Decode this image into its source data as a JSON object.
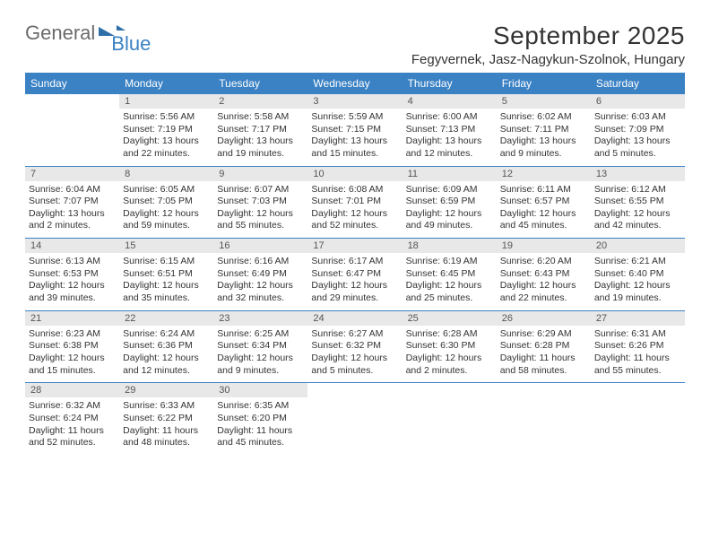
{
  "logo": {
    "text1": "General",
    "text2": "Blue"
  },
  "title": "September 2025",
  "location": "Fegyvernek, Jasz-Nagykun-Szolnok, Hungary",
  "colors": {
    "header_bg": "#3b82c4",
    "daynum_bg": "#e8e8e8",
    "text": "#333333",
    "logo_gray": "#6b6b6b",
    "logo_blue": "#3b82c4"
  },
  "dow": [
    "Sunday",
    "Monday",
    "Tuesday",
    "Wednesday",
    "Thursday",
    "Friday",
    "Saturday"
  ],
  "weeks": [
    [
      {
        "n": "",
        "sr": "",
        "ss": "",
        "dl": ""
      },
      {
        "n": "1",
        "sr": "Sunrise: 5:56 AM",
        "ss": "Sunset: 7:19 PM",
        "dl": "Daylight: 13 hours and 22 minutes."
      },
      {
        "n": "2",
        "sr": "Sunrise: 5:58 AM",
        "ss": "Sunset: 7:17 PM",
        "dl": "Daylight: 13 hours and 19 minutes."
      },
      {
        "n": "3",
        "sr": "Sunrise: 5:59 AM",
        "ss": "Sunset: 7:15 PM",
        "dl": "Daylight: 13 hours and 15 minutes."
      },
      {
        "n": "4",
        "sr": "Sunrise: 6:00 AM",
        "ss": "Sunset: 7:13 PM",
        "dl": "Daylight: 13 hours and 12 minutes."
      },
      {
        "n": "5",
        "sr": "Sunrise: 6:02 AM",
        "ss": "Sunset: 7:11 PM",
        "dl": "Daylight: 13 hours and 9 minutes."
      },
      {
        "n": "6",
        "sr": "Sunrise: 6:03 AM",
        "ss": "Sunset: 7:09 PM",
        "dl": "Daylight: 13 hours and 5 minutes."
      }
    ],
    [
      {
        "n": "7",
        "sr": "Sunrise: 6:04 AM",
        "ss": "Sunset: 7:07 PM",
        "dl": "Daylight: 13 hours and 2 minutes."
      },
      {
        "n": "8",
        "sr": "Sunrise: 6:05 AM",
        "ss": "Sunset: 7:05 PM",
        "dl": "Daylight: 12 hours and 59 minutes."
      },
      {
        "n": "9",
        "sr": "Sunrise: 6:07 AM",
        "ss": "Sunset: 7:03 PM",
        "dl": "Daylight: 12 hours and 55 minutes."
      },
      {
        "n": "10",
        "sr": "Sunrise: 6:08 AM",
        "ss": "Sunset: 7:01 PM",
        "dl": "Daylight: 12 hours and 52 minutes."
      },
      {
        "n": "11",
        "sr": "Sunrise: 6:09 AM",
        "ss": "Sunset: 6:59 PM",
        "dl": "Daylight: 12 hours and 49 minutes."
      },
      {
        "n": "12",
        "sr": "Sunrise: 6:11 AM",
        "ss": "Sunset: 6:57 PM",
        "dl": "Daylight: 12 hours and 45 minutes."
      },
      {
        "n": "13",
        "sr": "Sunrise: 6:12 AM",
        "ss": "Sunset: 6:55 PM",
        "dl": "Daylight: 12 hours and 42 minutes."
      }
    ],
    [
      {
        "n": "14",
        "sr": "Sunrise: 6:13 AM",
        "ss": "Sunset: 6:53 PM",
        "dl": "Daylight: 12 hours and 39 minutes."
      },
      {
        "n": "15",
        "sr": "Sunrise: 6:15 AM",
        "ss": "Sunset: 6:51 PM",
        "dl": "Daylight: 12 hours and 35 minutes."
      },
      {
        "n": "16",
        "sr": "Sunrise: 6:16 AM",
        "ss": "Sunset: 6:49 PM",
        "dl": "Daylight: 12 hours and 32 minutes."
      },
      {
        "n": "17",
        "sr": "Sunrise: 6:17 AM",
        "ss": "Sunset: 6:47 PM",
        "dl": "Daylight: 12 hours and 29 minutes."
      },
      {
        "n": "18",
        "sr": "Sunrise: 6:19 AM",
        "ss": "Sunset: 6:45 PM",
        "dl": "Daylight: 12 hours and 25 minutes."
      },
      {
        "n": "19",
        "sr": "Sunrise: 6:20 AM",
        "ss": "Sunset: 6:43 PM",
        "dl": "Daylight: 12 hours and 22 minutes."
      },
      {
        "n": "20",
        "sr": "Sunrise: 6:21 AM",
        "ss": "Sunset: 6:40 PM",
        "dl": "Daylight: 12 hours and 19 minutes."
      }
    ],
    [
      {
        "n": "21",
        "sr": "Sunrise: 6:23 AM",
        "ss": "Sunset: 6:38 PM",
        "dl": "Daylight: 12 hours and 15 minutes."
      },
      {
        "n": "22",
        "sr": "Sunrise: 6:24 AM",
        "ss": "Sunset: 6:36 PM",
        "dl": "Daylight: 12 hours and 12 minutes."
      },
      {
        "n": "23",
        "sr": "Sunrise: 6:25 AM",
        "ss": "Sunset: 6:34 PM",
        "dl": "Daylight: 12 hours and 9 minutes."
      },
      {
        "n": "24",
        "sr": "Sunrise: 6:27 AM",
        "ss": "Sunset: 6:32 PM",
        "dl": "Daylight: 12 hours and 5 minutes."
      },
      {
        "n": "25",
        "sr": "Sunrise: 6:28 AM",
        "ss": "Sunset: 6:30 PM",
        "dl": "Daylight: 12 hours and 2 minutes."
      },
      {
        "n": "26",
        "sr": "Sunrise: 6:29 AM",
        "ss": "Sunset: 6:28 PM",
        "dl": "Daylight: 11 hours and 58 minutes."
      },
      {
        "n": "27",
        "sr": "Sunrise: 6:31 AM",
        "ss": "Sunset: 6:26 PM",
        "dl": "Daylight: 11 hours and 55 minutes."
      }
    ],
    [
      {
        "n": "28",
        "sr": "Sunrise: 6:32 AM",
        "ss": "Sunset: 6:24 PM",
        "dl": "Daylight: 11 hours and 52 minutes."
      },
      {
        "n": "29",
        "sr": "Sunrise: 6:33 AM",
        "ss": "Sunset: 6:22 PM",
        "dl": "Daylight: 11 hours and 48 minutes."
      },
      {
        "n": "30",
        "sr": "Sunrise: 6:35 AM",
        "ss": "Sunset: 6:20 PM",
        "dl": "Daylight: 11 hours and 45 minutes."
      },
      {
        "n": "",
        "sr": "",
        "ss": "",
        "dl": ""
      },
      {
        "n": "",
        "sr": "",
        "ss": "",
        "dl": ""
      },
      {
        "n": "",
        "sr": "",
        "ss": "",
        "dl": ""
      },
      {
        "n": "",
        "sr": "",
        "ss": "",
        "dl": ""
      }
    ]
  ]
}
